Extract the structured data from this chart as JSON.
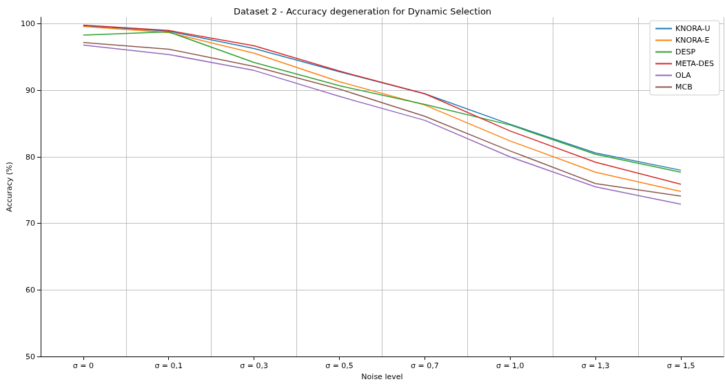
{
  "chart_data": {
    "type": "line",
    "title": "Dataset 2 - Accuracy degeneration for Dynamic Selection",
    "xlabel": "Noise level",
    "ylabel": "Accuracy (%)",
    "categories": [
      "σ = 0",
      "σ = 0,1",
      "σ = 0,3",
      "σ = 0,5",
      "σ = 0,7",
      "σ = 1,0",
      "σ = 1,3",
      "σ = 1,5"
    ],
    "series": [
      {
        "name": "KNORA-U",
        "color": "#1f77b4",
        "values": [
          99.7,
          98.9,
          96.3,
          92.8,
          89.5,
          84.9,
          80.6,
          78.0
        ]
      },
      {
        "name": "KNORA-E",
        "color": "#ff7f0e",
        "values": [
          99.6,
          98.7,
          95.6,
          91.3,
          87.8,
          82.4,
          77.7,
          74.8
        ]
      },
      {
        "name": "DESP",
        "color": "#2ca02c",
        "values": [
          98.3,
          98.8,
          94.2,
          90.7,
          87.9,
          84.8,
          80.4,
          77.7
        ]
      },
      {
        "name": "META-DES",
        "color": "#d62728",
        "values": [
          99.8,
          99.0,
          96.7,
          92.9,
          89.5,
          83.9,
          79.2,
          75.9
        ]
      },
      {
        "name": "OLA",
        "color": "#9467bd",
        "values": [
          96.8,
          95.4,
          93.0,
          89.1,
          85.5,
          80.0,
          75.5,
          72.9
        ]
      },
      {
        "name": "MCB",
        "color": "#8c564b",
        "values": [
          97.2,
          96.2,
          93.6,
          90.2,
          86.1,
          80.9,
          76.0,
          74.1
        ]
      }
    ],
    "ylim": [
      50,
      101
    ],
    "yticks": [
      50,
      60,
      70,
      80,
      90,
      100
    ],
    "grid": true,
    "legend": "top right",
    "marker": "none",
    "line_style": "solid"
  }
}
